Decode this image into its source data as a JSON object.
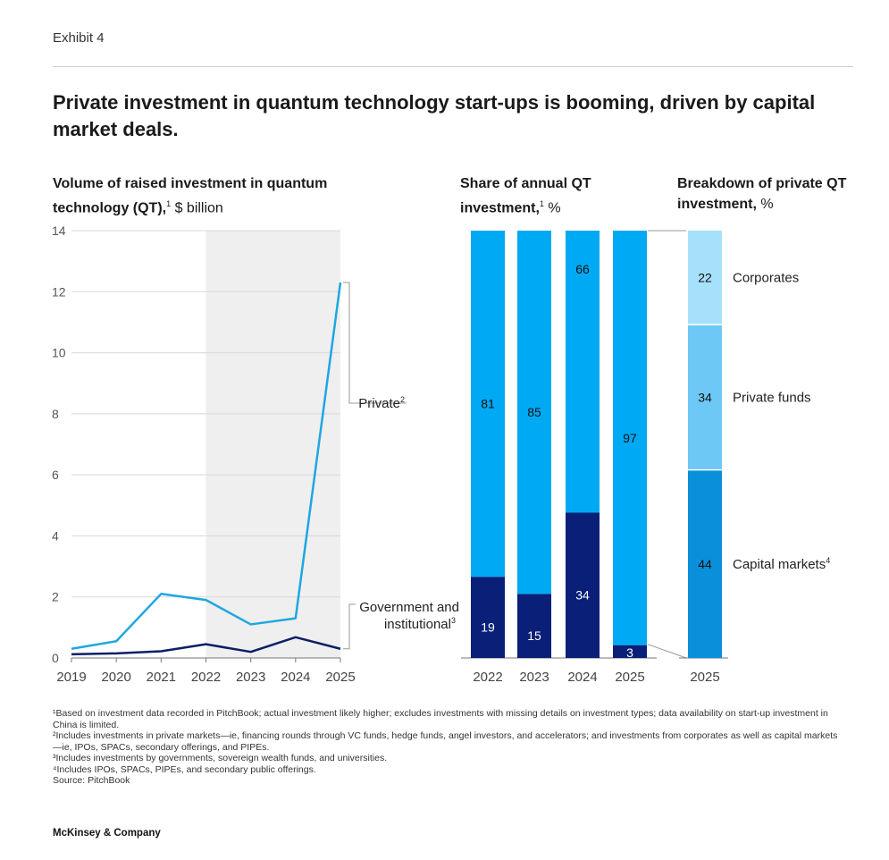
{
  "header": {
    "exhibit": "Exhibit 4",
    "title": "Private investment in quantum technology start-ups is booming, driven by capital market deals."
  },
  "chart_data": [
    {
      "type": "line",
      "title_bold": "Volume of raised investment in quantum technology (QT),",
      "title_sup": "1",
      "title_unit": " $ billion",
      "x": [
        "2019",
        "2020",
        "2021",
        "2022",
        "2023",
        "2024",
        "2025"
      ],
      "ylim": [
        0,
        14
      ],
      "yticks": [
        "0",
        "2",
        "4",
        "6",
        "8",
        "10",
        "12",
        "14"
      ],
      "shaded_range": [
        "2022",
        "2025"
      ],
      "grid": true,
      "series": [
        {
          "name": "Private",
          "sup": "2",
          "values": [
            0.3,
            0.55,
            2.1,
            1.9,
            1.1,
            1.3,
            12.3
          ],
          "color": "#1ea7e0"
        },
        {
          "name": "Government and institutional",
          "sup": "3",
          "values": [
            0.12,
            0.15,
            0.22,
            0.45,
            0.2,
            0.68,
            0.3
          ],
          "color": "#0b1f66"
        }
      ]
    },
    {
      "type": "bar",
      "stacked": true,
      "title_bold": "Share of annual QT investment,",
      "title_sup": "1",
      "title_unit": " %",
      "categories": [
        "2022",
        "2023",
        "2024",
        "2025"
      ],
      "ylim": [
        0,
        100
      ],
      "series": [
        {
          "name": "Government and institutional",
          "values": [
            19,
            15,
            34,
            3
          ],
          "color": "#0a1f78"
        },
        {
          "name": "Private",
          "values": [
            81,
            85,
            66,
            97
          ],
          "color": "#00a9f4"
        }
      ]
    },
    {
      "type": "bar",
      "stacked": true,
      "title_bold": "Breakdown of private QT investment,",
      "title_unit": " %",
      "categories": [
        "2025"
      ],
      "ylim": [
        0,
        100
      ],
      "series": [
        {
          "name": "Capital markets",
          "sup": "4",
          "values": [
            44
          ],
          "color": "#0a90db"
        },
        {
          "name": "Private funds",
          "values": [
            34
          ],
          "color": "#6ec8f5"
        },
        {
          "name": "Corporates",
          "values": [
            22
          ],
          "color": "#a6e1fb"
        }
      ]
    }
  ],
  "footnotes": [
    "¹Based on investment data recorded in PitchBook; actual investment likely higher; excludes investments with missing details on investment types; data availability on start-up investment in China is limited.",
    "²Includes investments in private markets—ie, financing rounds through VC funds, hedge funds, angel investors, and accelerators; and investments from corporates as well as capital markets—ie, IPOs, SPACs, secondary offerings, and PIPEs.",
    "³Includes investments by governments, sovereign wealth funds, and universities.",
    "⁴Includes IPOs, SPACs, PIPEs, and secondary public offerings.",
    "Source: PitchBook"
  ],
  "brand": "McKinsey & Company"
}
